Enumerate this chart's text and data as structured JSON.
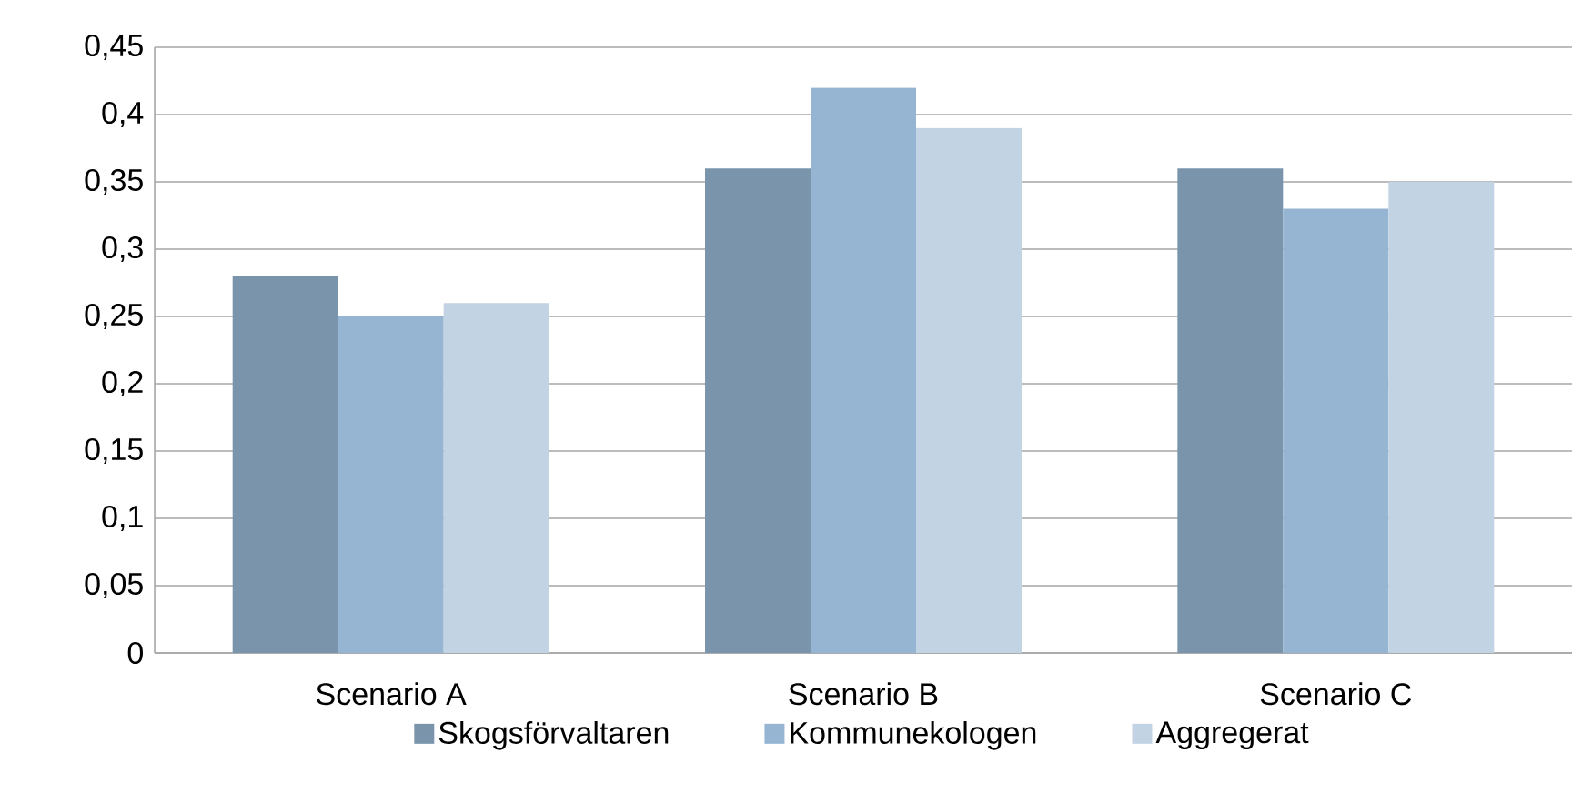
{
  "chart_data": {
    "type": "bar",
    "categories": [
      "Scenario A",
      "Scenario B",
      "Scenario C"
    ],
    "series": [
      {
        "name": "Skogsförvaltaren",
        "color": "#7a95ab",
        "values": [
          0.28,
          0.36,
          0.36
        ]
      },
      {
        "name": "Kommunekologen",
        "color": "#95b5d3",
        "values": [
          0.25,
          0.42,
          0.33
        ]
      },
      {
        "name": "Aggregerat",
        "color": "#c2d3e3",
        "values": [
          0.26,
          0.39,
          0.35
        ]
      }
    ],
    "ylim": [
      0,
      0.45
    ],
    "yticks": [
      {
        "value": 0,
        "label": "0"
      },
      {
        "value": 0.05,
        "label": "0,05"
      },
      {
        "value": 0.1,
        "label": "0,1"
      },
      {
        "value": 0.15,
        "label": "0,15"
      },
      {
        "value": 0.2,
        "label": "0,2"
      },
      {
        "value": 0.25,
        "label": "0,25"
      },
      {
        "value": 0.3,
        "label": "0,3"
      },
      {
        "value": 0.35,
        "label": "0,35"
      },
      {
        "value": 0.4,
        "label": "0,4"
      },
      {
        "value": 0.45,
        "label": "0,45"
      }
    ],
    "grid": "y",
    "legend": "bottom"
  }
}
